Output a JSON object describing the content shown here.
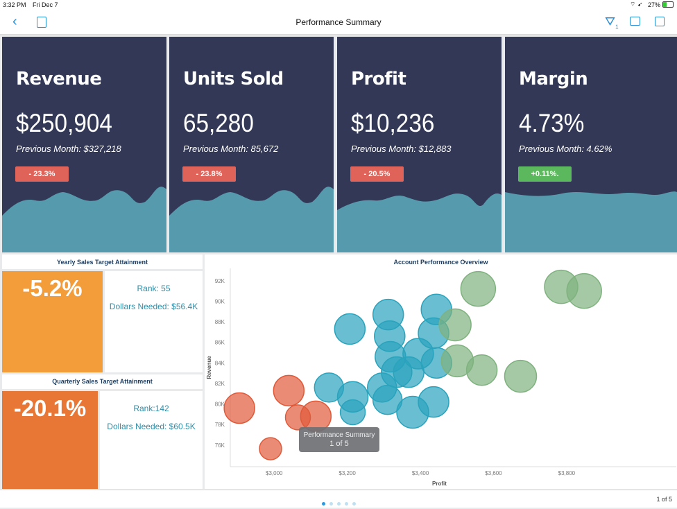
{
  "status_bar": {
    "time": "3:32 PM",
    "date": "Fri Dec 7",
    "battery": "27%"
  },
  "nav": {
    "title": "Performance Summary",
    "filter_count": "1"
  },
  "kpis": [
    {
      "title": "Revenue",
      "value": "$250,904",
      "previous": "Previous Month: $327,218",
      "change": "- 23.3%",
      "change_color": "#e0635a"
    },
    {
      "title": "Units Sold",
      "value": "65,280",
      "previous": "Previous Month: 85,672",
      "change": "- 23.8%",
      "change_color": "#e0635a"
    },
    {
      "title": "Profit",
      "value": "$10,236",
      "previous": "Previous Month: $12,883",
      "change": "- 20.5%",
      "change_color": "#e0635a"
    },
    {
      "title": "Margin",
      "value": "4.73%",
      "previous": "Previous Month: 4.62%",
      "change": "+0.11%.",
      "change_color": "#5cb85c"
    }
  ],
  "yearly": {
    "title": "Yearly Sales Target Attainment",
    "value": "-5.2%",
    "rank": "Rank: 55",
    "needed": "Dollars Needed: $56.4K",
    "color": "#f39c3a"
  },
  "quarterly": {
    "title": "Quarterly Sales Target Attainment",
    "value": "-20.1%",
    "rank": "Rank:142",
    "needed": "Dollars Needed: $60.5K",
    "color": "#e87634"
  },
  "chart_data": {
    "type": "scatter",
    "title": "Account Performance Overview",
    "xlabel": "Profit",
    "ylabel": "Revenue",
    "xlim": [
      2880,
      4100
    ],
    "ylim": [
      73.9,
      93.2
    ],
    "x_ticks": [
      "$3,000",
      "$3,200",
      "$3,400",
      "$3,600",
      "$3,800"
    ],
    "x_tick_values": [
      3000,
      3200,
      3400,
      3600,
      3800
    ],
    "y_ticks": [
      "76K",
      "78K",
      "80K",
      "82K",
      "84K",
      "86K",
      "88K",
      "90K",
      "92K"
    ],
    "y_tick_values": [
      76,
      78,
      80,
      82,
      84,
      86,
      88,
      90,
      92
    ],
    "grid": false,
    "series": [
      {
        "color": "#e05a3a",
        "points": [
          [
            2905,
            79.6,
            22
          ],
          [
            3040,
            81.3,
            22
          ],
          [
            2990,
            75.65,
            16
          ],
          [
            3065,
            78.7,
            18
          ],
          [
            3114,
            78.8,
            22
          ]
        ]
      },
      {
        "color": "#2aa3bd",
        "points": [
          [
            3150,
            81.6,
            21
          ],
          [
            3207,
            87.3,
            22
          ],
          [
            3215,
            80.7,
            22
          ],
          [
            3215,
            79.2,
            18
          ],
          [
            3312,
            88.7,
            22
          ],
          [
            3316,
            86.6,
            22
          ],
          [
            3318,
            84.6,
            22
          ],
          [
            3295,
            81.6,
            21
          ],
          [
            3310,
            80.4,
            21
          ],
          [
            3335,
            83.1,
            22
          ],
          [
            3368,
            83.1,
            22
          ],
          [
            3394,
            84.9,
            22
          ],
          [
            3379,
            79.2,
            23
          ],
          [
            3436,
            80.2,
            22
          ],
          [
            3444,
            89.2,
            22
          ],
          [
            3436,
            86.9,
            22
          ],
          [
            3444,
            84.0,
            22
          ]
        ]
      },
      {
        "color": "#7fb27f",
        "points": [
          [
            3558,
            91.2,
            25
          ],
          [
            3495,
            87.7,
            23
          ],
          [
            3501,
            84.2,
            23
          ],
          [
            3568,
            83.3,
            22
          ],
          [
            3674,
            82.7,
            23
          ],
          [
            3785,
            91.4,
            24
          ],
          [
            3848,
            91.0,
            25
          ]
        ]
      }
    ]
  },
  "tooltip": {
    "title": "Performance Summary",
    "page": "1 of 5"
  },
  "footer": {
    "page": "1 of 5",
    "pages": 5,
    "current": 1
  }
}
